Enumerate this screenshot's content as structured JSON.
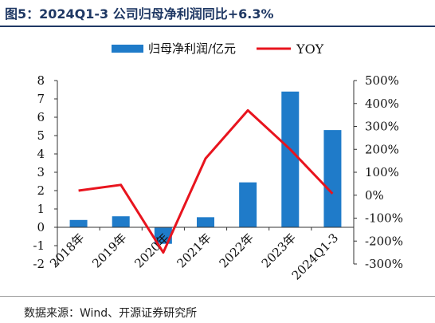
{
  "title": "图5：2024Q1-3 公司归母净利润同比+6.3%",
  "source": "数据来源：Wind、开源证券研究所",
  "chart_data": {
    "type": "bar",
    "categories": [
      "2018年",
      "2019年",
      "2020年",
      "2021年",
      "2022年",
      "2023年",
      "2024Q1-3"
    ],
    "series": [
      {
        "name": "归母净利润/亿元",
        "type": "bar",
        "axis": "left",
        "color": "#1f7bc9",
        "values": [
          0.4,
          0.6,
          -0.9,
          0.55,
          2.45,
          7.4,
          5.3
        ]
      },
      {
        "name": "YOY",
        "type": "line",
        "axis": "right",
        "color": "#e8141e",
        "values": [
          20,
          45,
          -250,
          160,
          370,
          200,
          6.3
        ]
      }
    ],
    "y_left": {
      "min": -2,
      "max": 8,
      "ticks": [
        "-2",
        "-1",
        "0",
        "1",
        "2",
        "3",
        "4",
        "5",
        "6",
        "7",
        "8"
      ]
    },
    "y_right": {
      "min": -300,
      "max": 500,
      "ticks": [
        "-300%",
        "-200%",
        "-100%",
        "0%",
        "100%",
        "200%",
        "300%",
        "400%",
        "500%"
      ]
    },
    "legend": "top-center",
    "grid": false
  }
}
